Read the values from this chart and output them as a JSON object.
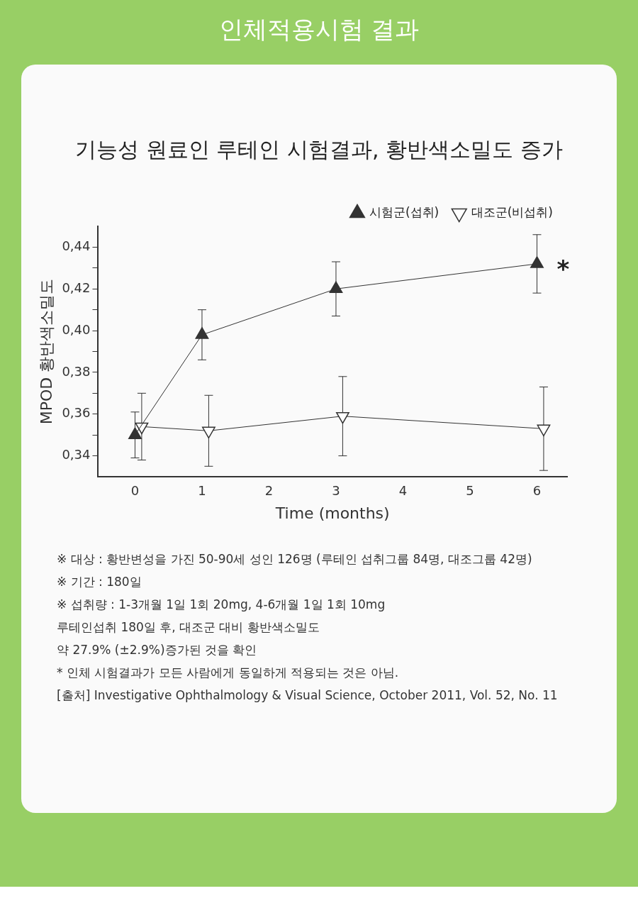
{
  "chart_data": {
    "type": "line",
    "title": "인체적용시험 결과",
    "subtitle": "기능성 원료인 루테인 시험결과, 황반색소밀도 증가",
    "xlabel": "Time (months)",
    "ylabel": "MPOD 황반색소밀도",
    "series": [
      {
        "name": "시험군(섭취)",
        "color": "#333333",
        "x": [
          0,
          1,
          3,
          6
        ],
        "values": [
          0.35,
          0.398,
          0.42,
          0.432
        ],
        "errors": [
          0.011,
          0.012,
          0.013,
          0.014
        ]
      },
      {
        "name": "대조군(비섭취)",
        "color": "#333333",
        "x": [
          0.1,
          1.1,
          3.1,
          6.1
        ],
        "values": [
          0.354,
          0.352,
          0.359,
          0.353
        ],
        "errors": [
          0.016,
          0.017,
          0.019,
          0.02
        ]
      }
    ],
    "xlim": [
      -0.55,
      6.45
    ],
    "xticks": [
      0,
      1,
      2,
      3,
      4,
      5,
      6
    ],
    "ylim": [
      0.33,
      0.45
    ],
    "yticks": [
      {
        "value": 0.34,
        "label": "0,34"
      },
      {
        "value": 0.35,
        "label": null
      },
      {
        "value": 0.36,
        "label": "0,36"
      },
      {
        "value": 0.37,
        "label": null
      },
      {
        "value": 0.38,
        "label": "0,38"
      },
      {
        "value": 0.39,
        "label": null
      },
      {
        "value": 0.4,
        "label": "0,40"
      },
      {
        "value": 0.41,
        "label": null
      },
      {
        "value": 0.42,
        "label": "0,42"
      },
      {
        "value": 0.43,
        "label": null
      },
      {
        "value": 0.44,
        "label": "0,44"
      }
    ],
    "grid": false,
    "legend": "top right",
    "marker": "triangle",
    "line_style": "solid",
    "annotations": [
      {
        "text": "*",
        "x": 6,
        "y": 0.432
      },
      "※  대상 : 황반변성을 가진 50-90세 성인 126명 (루테인 섭취그룹 84명, 대조그룹 42명)",
      "※  기간 : 180일",
      "※  섭취량 : 1-3개월 1일 1회 20mg, 4-6개월 1일 1회 10mg",
      "루테인섭취 180일 후, 대조군 대비 황반색소밀도",
      "약 27.9% (±2.9%)증가된 것을 확인",
      "* 인체 시험결과가 모든 사람에게 동일하게 적용되는 것은 아님.",
      "[출처] Investigative Ophthalmology & Visual Science, October 2011, Vol. 52, No. 11"
    ]
  }
}
